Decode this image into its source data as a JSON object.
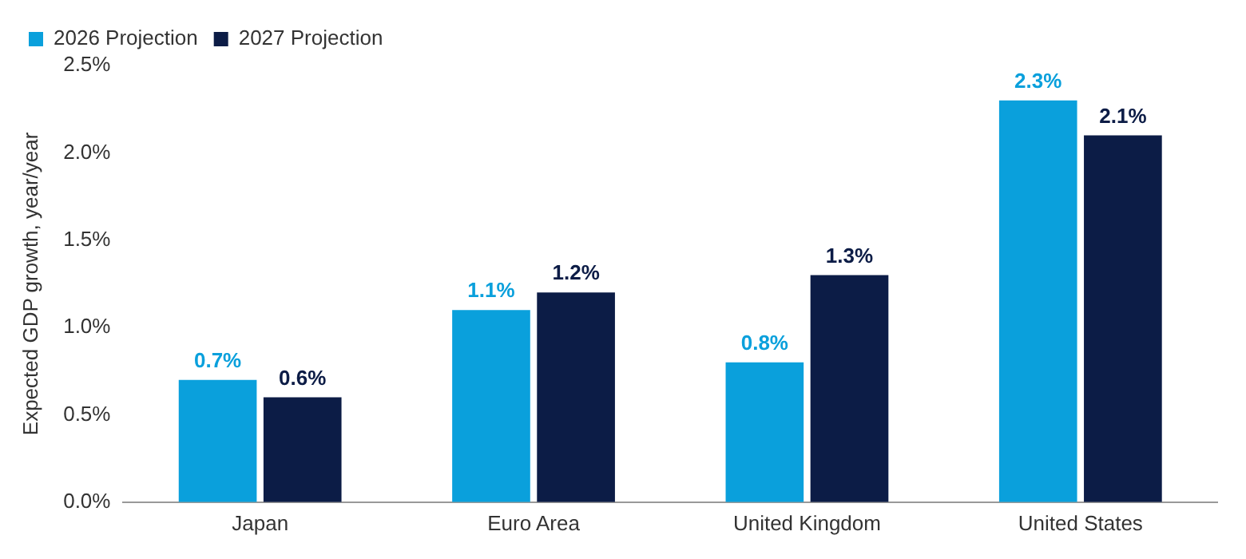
{
  "chart_data": {
    "type": "bar",
    "ylabel": "Expected GDP growth, year/year",
    "categories": [
      "Japan",
      "Euro Area",
      "United Kingdom",
      "United States"
    ],
    "series": [
      {
        "name": "2026 Projection",
        "color": "#0aa0dc",
        "values": [
          0.7,
          1.1,
          0.8,
          2.3
        ],
        "value_labels": [
          "0.7%",
          "1.1%",
          "0.8%",
          "2.3%"
        ]
      },
      {
        "name": "2027 Projection",
        "color": "#0c1c46",
        "values": [
          0.6,
          1.2,
          1.3,
          2.1
        ],
        "value_labels": [
          "0.6%",
          "1.2%",
          "1.3%",
          "2.1%"
        ]
      }
    ],
    "ylim": [
      0,
      2.5
    ],
    "yticks": [
      {
        "value": 0,
        "label": "0.0%"
      },
      {
        "value": 0.5,
        "label": "0.5%"
      },
      {
        "value": 1,
        "label": "1.0%"
      },
      {
        "value": 1.5,
        "label": "1.5%"
      },
      {
        "value": 2,
        "label": "2.0%"
      },
      {
        "value": 2.5,
        "label": "2.5%"
      }
    ],
    "grid": false,
    "legend": "top left"
  }
}
